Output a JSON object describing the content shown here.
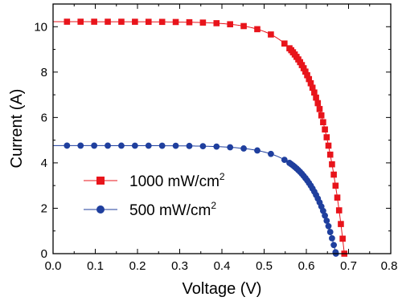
{
  "chart_data": {
    "type": "line",
    "xlabel": "Voltage (V)",
    "ylabel": "Current (A)",
    "xlim": [
      0.0,
      0.8
    ],
    "ylim": [
      0,
      11
    ],
    "x_ticks": [
      "0.0",
      "0.1",
      "0.2",
      "0.3",
      "0.4",
      "0.5",
      "0.6",
      "0.7",
      "0.8"
    ],
    "y_ticks": [
      "0",
      "2",
      "4",
      "6",
      "8",
      "10"
    ],
    "grid": false,
    "legend_position": "bottom-left",
    "series": [
      {
        "name": "1000 mW/cm",
        "name_sup": "2",
        "color": "#e8141b",
        "marker": "square",
        "isc": 10.22,
        "voc": 0.69,
        "knee": 0.06
      },
      {
        "name": "500 mW/cm",
        "name_sup": "2",
        "color": "#1f3f9e",
        "marker": "circle",
        "isc": 4.76,
        "voc": 0.67,
        "knee": 0.06
      }
    ]
  }
}
